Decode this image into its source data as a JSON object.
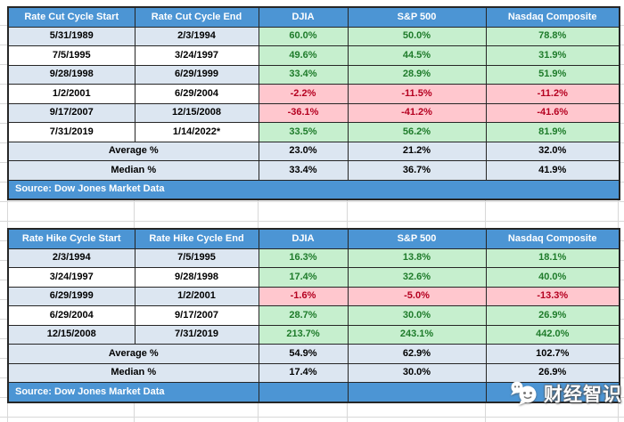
{
  "colors": {
    "header_bg": "#4C95D4",
    "alt_row_bg": "#DCE6F1",
    "positive_bg": "#C6EFCE",
    "positive_text": "#1E7B2A",
    "negative_bg": "#FFC7CE",
    "negative_text": "#B50020",
    "border": "#262626",
    "gridline": "#D8D8D8"
  },
  "chart_data": [
    {
      "type": "table",
      "columns": [
        "Rate Cut Cycle Start",
        "Rate Cut Cycle End",
        "DJIA",
        "S&P 500",
        "Nasdaq Composite"
      ],
      "rows": [
        {
          "start": "5/31/1989",
          "end": "2/3/1994",
          "values": [
            "60.0%",
            "50.0%",
            "78.8%"
          ]
        },
        {
          "start": "7/5/1995",
          "end": "3/24/1997",
          "values": [
            "49.6%",
            "44.5%",
            "31.9%"
          ]
        },
        {
          "start": "9/28/1998",
          "end": "6/29/1999",
          "values": [
            "33.4%",
            "28.9%",
            "51.9%"
          ]
        },
        {
          "start": "1/2/2001",
          "end": "6/29/2004",
          "values": [
            "-2.2%",
            "-11.5%",
            "-11.2%"
          ]
        },
        {
          "start": "9/17/2007",
          "end": "12/15/2008",
          "values": [
            "-36.1%",
            "-41.2%",
            "-41.6%"
          ]
        },
        {
          "start": "7/31/2019",
          "end": "1/14/2022*",
          "values": [
            "33.5%",
            "56.2%",
            "81.9%"
          ]
        }
      ],
      "average": {
        "label": "Average %",
        "values": [
          "23.0%",
          "21.2%",
          "32.0%"
        ]
      },
      "median": {
        "label": "Median %",
        "values": [
          "33.4%",
          "36.7%",
          "41.9%"
        ]
      },
      "source": "Source: Dow Jones Market Data",
      "source_merged_across_all_columns": true
    },
    {
      "type": "table",
      "columns": [
        "Rate Hike Cycle Start",
        "Rate Hike Cycle End",
        "DJIA",
        "S&P 500",
        "Nasdaq Composite"
      ],
      "rows": [
        {
          "start": "2/3/1994",
          "end": "7/5/1995",
          "values": [
            "16.3%",
            "13.8%",
            "18.1%"
          ]
        },
        {
          "start": "3/24/1997",
          "end": "9/28/1998",
          "values": [
            "17.4%",
            "32.6%",
            "40.0%"
          ]
        },
        {
          "start": "6/29/1999",
          "end": "1/2/2001",
          "values": [
            "-1.6%",
            "-5.0%",
            "-13.3%"
          ]
        },
        {
          "start": "6/29/2004",
          "end": "9/17/2007",
          "values": [
            "28.7%",
            "30.0%",
            "26.9%"
          ]
        },
        {
          "start": "12/15/2008",
          "end": "7/31/2019",
          "values": [
            "213.7%",
            "243.1%",
            "442.0%"
          ]
        }
      ],
      "average": {
        "label": "Average %",
        "values": [
          "54.9%",
          "62.9%",
          "102.7%"
        ]
      },
      "median": {
        "label": "Median %",
        "values": [
          "17.4%",
          "30.0%",
          "26.9%"
        ]
      },
      "source": "Source: Dow Jones Market Data",
      "source_merged_across_all_columns": false
    }
  ],
  "watermark": {
    "text": "财经智识",
    "icon": "wechat-chat-bubbles-icon"
  }
}
